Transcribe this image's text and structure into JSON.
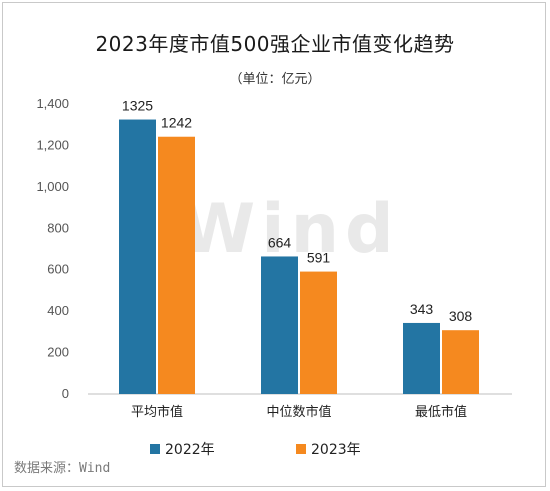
{
  "chart_data": {
    "type": "bar",
    "title": "2023年度市值500强企业市值变化趋势",
    "subtitle": "（单位：亿元）",
    "categories": [
      "平均市值",
      "中位数市值",
      "最低市值"
    ],
    "series": [
      {
        "name": "2022年",
        "values": [
          1325,
          664,
          343
        ],
        "color": "#2375a3"
      },
      {
        "name": "2023年",
        "values": [
          1242,
          591,
          308
        ],
        "color": "#f5891f"
      }
    ],
    "yticks": [
      "0",
      "200",
      "400",
      "600",
      "800",
      "1,000",
      "1,200",
      "1,400"
    ],
    "ylim": [
      0,
      1400
    ],
    "grid": false,
    "legend_position": "bottom",
    "watermark": "Wind",
    "source": "数据来源：Wind"
  }
}
